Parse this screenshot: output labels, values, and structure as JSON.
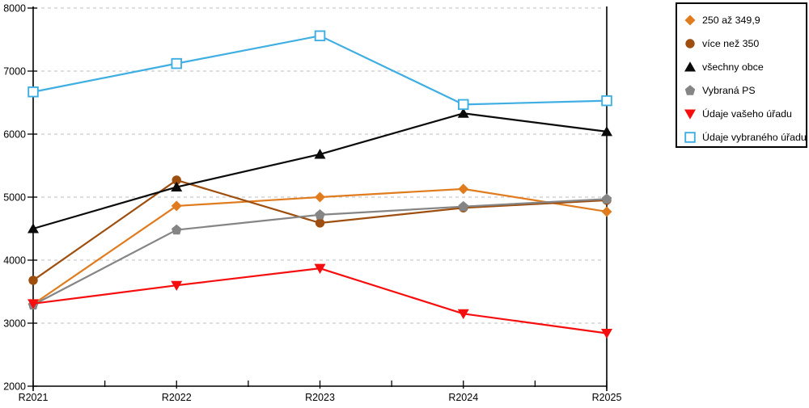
{
  "chart_data": {
    "type": "line",
    "title": "",
    "xlabel": "",
    "ylabel": "",
    "categories": [
      "R2021",
      "R2022",
      "R2023",
      "R2024",
      "R2025"
    ],
    "ylim": [
      2000,
      8000
    ],
    "y_ticks": [
      2000,
      3000,
      4000,
      5000,
      6000,
      7000,
      8000
    ],
    "y_tick_labels": [
      "2000",
      "3000",
      "4000",
      "5000",
      "6000",
      "7000",
      "8000"
    ],
    "grid": "horizontal-dashed",
    "minor_x_ticks": true,
    "legend_position": "outside-top-right",
    "series": [
      {
        "name": "250 až 349,9",
        "marker": "diamond",
        "color": "#E07C1E",
        "values": [
          3300,
          4860,
          5000,
          5130,
          4770
        ]
      },
      {
        "name": "více než 350",
        "marker": "circle",
        "color": "#9E4F0F",
        "values": [
          3680,
          5270,
          4590,
          4830,
          4950
        ]
      },
      {
        "name": "všechny obce",
        "marker": "triangle-up",
        "color": "#0A0A0A",
        "values": [
          4500,
          5160,
          5680,
          6330,
          6040
        ]
      },
      {
        "name": "Vybraná PS",
        "marker": "pentagon",
        "color": "#858585",
        "values": [
          3290,
          4480,
          4720,
          4850,
          4970
        ]
      },
      {
        "name": "Údaje vašeho úřadu",
        "marker": "triangle-down",
        "color": "#F60E0E",
        "values": [
          3310,
          3600,
          3870,
          3150,
          2840
        ]
      },
      {
        "name": "Údaje vybraného úřadu",
        "marker": "square-open",
        "color": "#3FAEE3",
        "values": [
          6670,
          7120,
          7560,
          6470,
          6530
        ]
      }
    ],
    "colors": {
      "axis": "#000000",
      "gridline": "#C9C9C9",
      "background": "#FFFFFF"
    }
  }
}
